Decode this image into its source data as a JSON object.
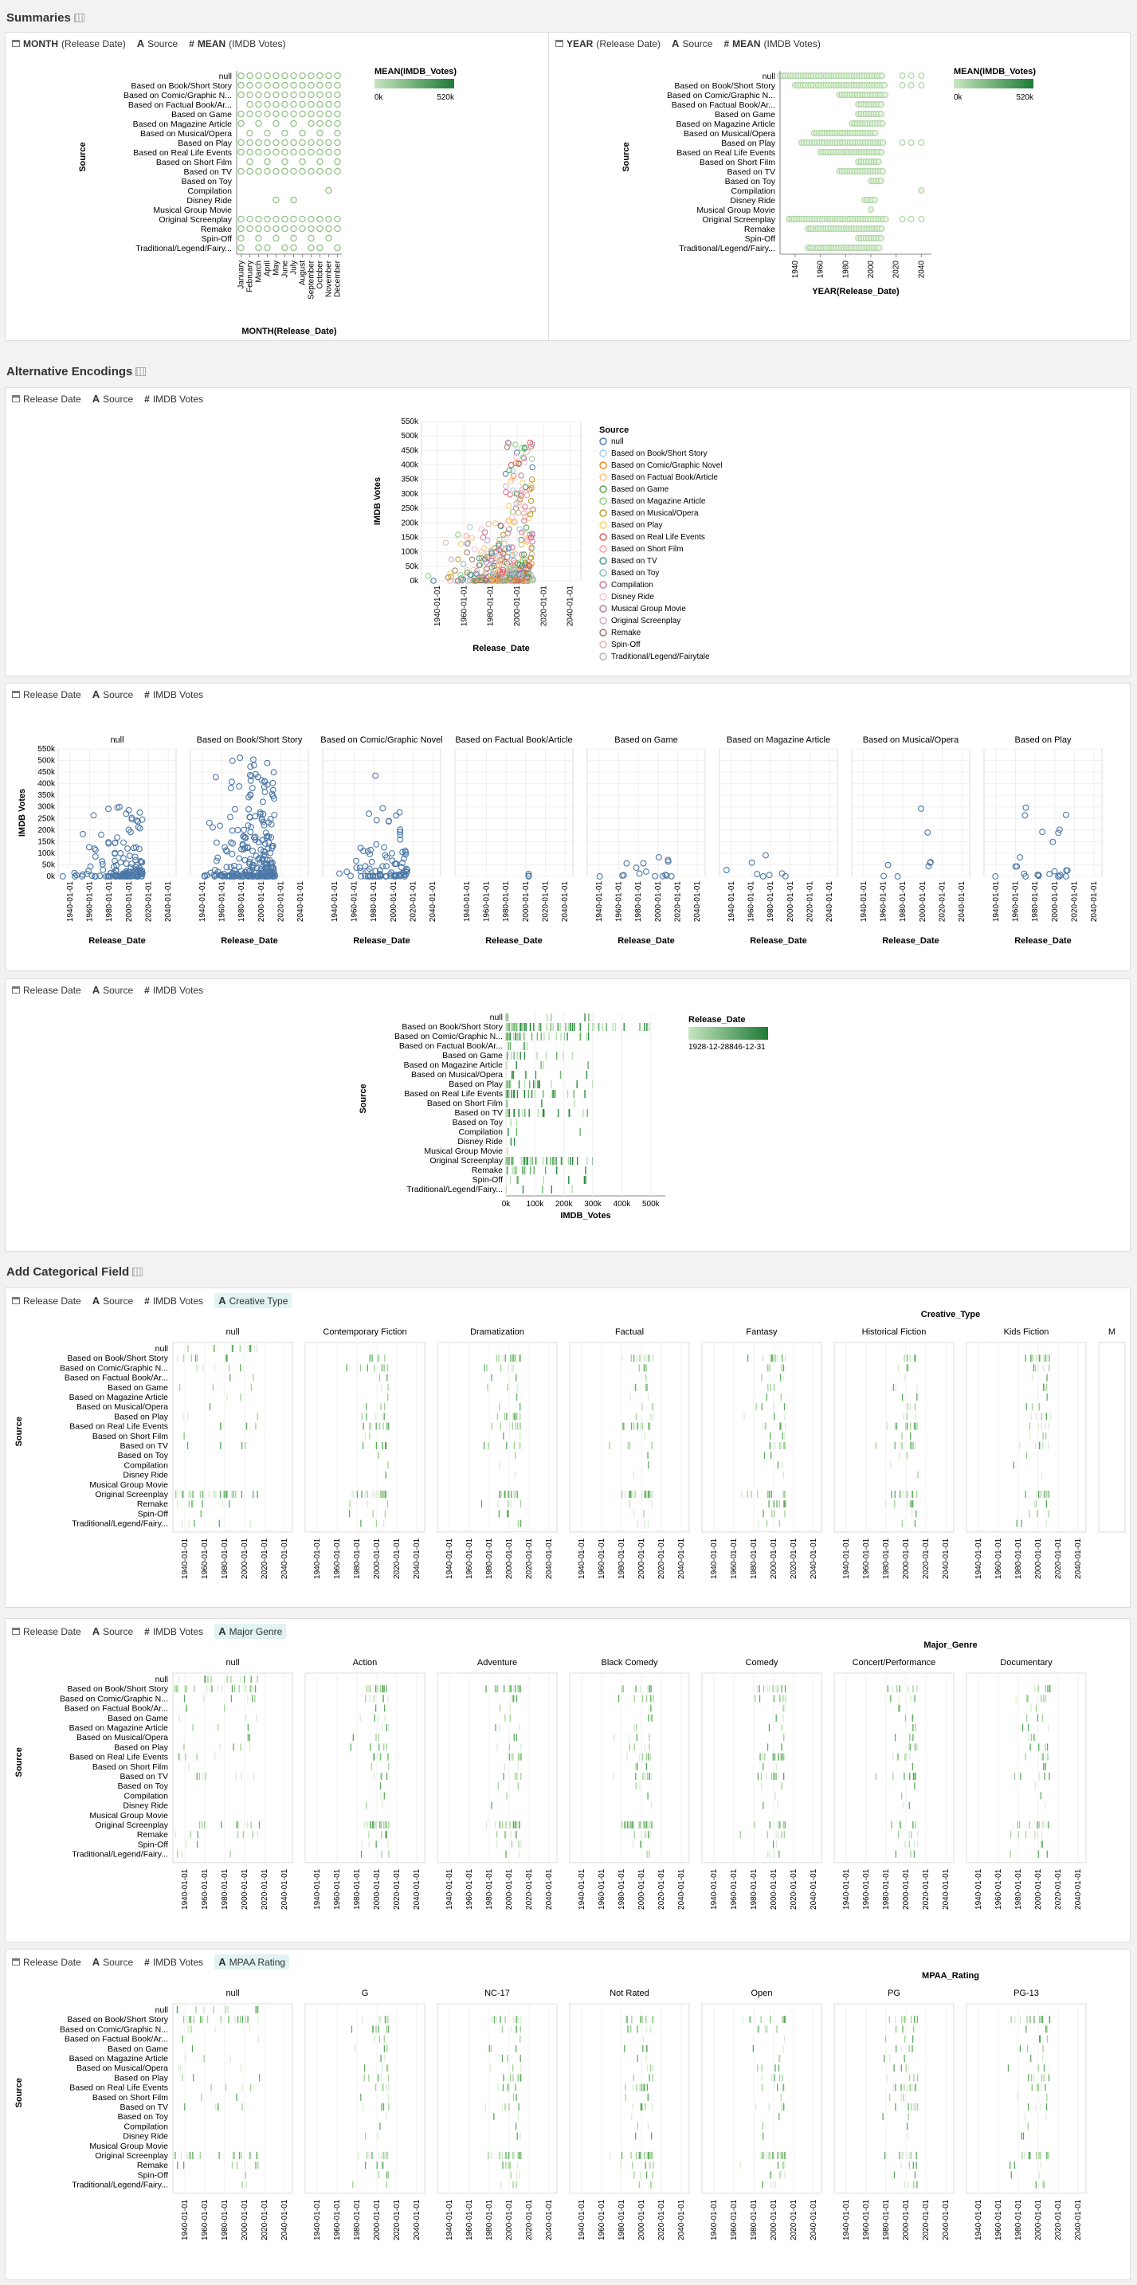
{
  "sections": {
    "summaries": "Summaries",
    "alternative": "Alternative Encodings",
    "categorical": "Add Categorical Field"
  },
  "summary_left": {
    "fields": [
      {
        "icon": "calendar-icon",
        "strong": "MONTH",
        "text": "(Release Date)"
      },
      {
        "icon": "text-icon",
        "strong": "",
        "text": "Source"
      },
      {
        "icon": "hash-icon",
        "strong": "MEAN",
        "text": "(IMDB Votes)"
      }
    ],
    "legend_title": "MEAN(IMDB_Votes)",
    "legend_min": "0k",
    "legend_max": "520k",
    "ytitle": "Source",
    "xtitle": "MONTH(Release_Date)"
  },
  "summary_right": {
    "fields": [
      {
        "icon": "calendar-icon",
        "strong": "YEAR",
        "text": "(Release Date)"
      },
      {
        "icon": "text-icon",
        "strong": "",
        "text": "Source"
      },
      {
        "icon": "hash-icon",
        "strong": "MEAN",
        "text": "(IMDB Votes)"
      }
    ],
    "legend_title": "MEAN(IMDB_Votes)",
    "legend_min": "0k",
    "legend_max": "520k",
    "ytitle": "Source",
    "xtitle": "YEAR(Release_Date)",
    "xticks": [
      "1940",
      "1960",
      "1980",
      "2000",
      "2020",
      "2040"
    ]
  },
  "basic_fields": [
    {
      "icon": "calendar-icon",
      "text": "Release Date"
    },
    {
      "icon": "text-icon",
      "text": "Source"
    },
    {
      "icon": "hash-icon",
      "text": "IMDB Votes"
    }
  ],
  "scatter": {
    "xtitle": "Release_Date",
    "ytitle": "IMDB Votes",
    "legend_title": "Source",
    "yticks": [
      "550k",
      "500k",
      "450k",
      "400k",
      "350k",
      "300k",
      "250k",
      "200k",
      "150k",
      "100k",
      "50k",
      "0k"
    ],
    "xticks": [
      "1940-01-01",
      "1960-01-01",
      "1980-01-01",
      "2000-01-01",
      "2020-01-01",
      "2040-01-01"
    ]
  },
  "facet": {
    "titles": [
      "null",
      "Based on Book/Short Story",
      "Based on Comic/Graphic Novel",
      "Based on Factual Book/Article",
      "Based on Game",
      "Based on Magazine Article",
      "Based on Musical/Opera",
      "Based on Play"
    ],
    "ytitle": "IMDB Votes",
    "xtitle": "Release_Date",
    "yticks": [
      "550k",
      "500k",
      "450k",
      "400k",
      "350k",
      "300k",
      "250k",
      "200k",
      "150k",
      "100k",
      "50k",
      "0k"
    ],
    "xticks": [
      "1940-01-01",
      "1960-01-01",
      "1980-01-01",
      "2000-01-01",
      "2020-01-01",
      "2040-01-01"
    ]
  },
  "ticks_chart": {
    "ytitle": "Source",
    "xtitle": "IMDB_Votes",
    "xticks": [
      "0k",
      "100k",
      "200k",
      "300k",
      "400k",
      "500k"
    ],
    "legend_title": "Release_Date",
    "legend_range": "1928-12-28846-12-31"
  },
  "sources": [
    "null",
    "Based on Book/Short Story",
    "Based on Comic/Graphic N...",
    "Based on Factual Book/Ar...",
    "Based on Game",
    "Based on Magazine Article",
    "Based on Musical/Opera",
    "Based on Play",
    "Based on Real Life Events",
    "Based on Short Film",
    "Based on TV",
    "Based on Toy",
    "Compilation",
    "Disney Ride",
    "Musical Group Movie",
    "Original Screenplay",
    "Remake",
    "Spin-Off",
    "Traditional/Legend/Fairy..."
  ],
  "legend_sources": [
    "null",
    "Based on Book/Short Story",
    "Based on Comic/Graphic Novel",
    "Based on Factual Book/Article",
    "Based on Game",
    "Based on Magazine Article",
    "Based on Musical/Opera",
    "Based on Play",
    "Based on Real Life Events",
    "Based on Short Film",
    "Based on TV",
    "Based on Toy",
    "Compilation",
    "Disney Ride",
    "Musical Group Movie",
    "Original Screenplay",
    "Remake",
    "Spin-Off",
    "Traditional/Legend/Fairytale"
  ],
  "legend_colors": [
    "#4c78a8",
    "#9ecae9",
    "#f58518",
    "#ffbf79",
    "#54a24b",
    "#88d27a",
    "#b79a20",
    "#f2cf5b",
    "#e45756",
    "#ff9d98",
    "#439894",
    "#83bcb6",
    "#d67195",
    "#fcbfd2",
    "#b279a2",
    "#d6a5c9",
    "#9e765f",
    "#d8b5a5",
    "#bab0ac"
  ],
  "months": [
    "January",
    "February",
    "March",
    "April",
    "May",
    "June",
    "July",
    "August",
    "September",
    "October",
    "November",
    "December"
  ],
  "cat_panels": [
    {
      "field": "Creative Type",
      "header": "Creative_Type",
      "columns": [
        "null",
        "Contemporary Fiction",
        "Dramatization",
        "Factual",
        "Fantasy",
        "Historical Fiction",
        "Kids Fiction",
        "M"
      ],
      "ytitle": "Source",
      "xticks": [
        "1940-01-01",
        "1960-01-01",
        "1980-01-01",
        "2000-01-01",
        "2020-01-01",
        "2040-01-01"
      ]
    },
    {
      "field": "Major Genre",
      "header": "Major_Genre",
      "columns": [
        "null",
        "Action",
        "Adventure",
        "Black Comedy",
        "Comedy",
        "Concert/Performance",
        "Documentary"
      ],
      "ytitle": "Source",
      "xticks": [
        "1940-01-01",
        "1960-01-01",
        "1980-01-01",
        "2000-01-01",
        "2020-01-01",
        "2040-01-01"
      ]
    },
    {
      "field": "MPAA Rating",
      "header": "MPAA_Rating",
      "columns": [
        "null",
        "G",
        "NC-17",
        "Not Rated",
        "Open",
        "PG",
        "PG-13"
      ],
      "ytitle": "Source",
      "xticks": [
        "1940-01-01",
        "1960-01-01",
        "1980-01-01",
        "2000-01-01",
        "2020-01-01",
        "2040-01-01"
      ]
    }
  ],
  "colors": {
    "green_light": "#c7e6c0",
    "green_dark": "#1e7a36",
    "blue": "#4c78a8",
    "panel_bg": "#ffffff"
  },
  "chart_data": [
    {
      "type": "scatter",
      "title": "",
      "xlabel": "MONTH(Release_Date)",
      "ylabel": "Source",
      "categories_x": [
        "January",
        "February",
        "March",
        "April",
        "May",
        "June",
        "July",
        "August",
        "September",
        "October",
        "November",
        "December"
      ],
      "categories_y": [
        "null",
        "Based on Book/Short Story",
        "Based on Comic/Graphic N...",
        "Based on Factual Book/Ar...",
        "Based on Game",
        "Based on Magazine Article",
        "Based on Musical/Opera",
        "Based on Play",
        "Based on Real Life Events",
        "Based on Short Film",
        "Based on TV",
        "Based on Toy",
        "Compilation",
        "Disney Ride",
        "Musical Group Movie",
        "Original Screenplay",
        "Remake",
        "Spin-Off",
        "Traditional/Legend/Fairy..."
      ],
      "legend": "MEAN(IMDB_Votes)",
      "color_range": [
        0,
        520000
      ],
      "present": [
        [
          0,
          1,
          2,
          3,
          4,
          5,
          6,
          7,
          8,
          9,
          10,
          11
        ],
        [
          0,
          1,
          2,
          3,
          4,
          5,
          6,
          7,
          8,
          9,
          10,
          11
        ],
        [
          0,
          1,
          2,
          3,
          4,
          5,
          6,
          7,
          8,
          9,
          10,
          11
        ],
        [
          1,
          2,
          3,
          4,
          5,
          6,
          7,
          8,
          9,
          10,
          11
        ],
        [
          0,
          1,
          2,
          3,
          4,
          5,
          6,
          7,
          8,
          9,
          10,
          11
        ],
        [
          0,
          2,
          4,
          6,
          8,
          9,
          10,
          11
        ],
        [
          1,
          3,
          5,
          7,
          9,
          11
        ],
        [
          0,
          1,
          2,
          3,
          4,
          5,
          6,
          7,
          8,
          9,
          10,
          11
        ],
        [
          0,
          1,
          2,
          3,
          4,
          5,
          6,
          7,
          8,
          9,
          10,
          11
        ],
        [
          1,
          3,
          5,
          7,
          9,
          11
        ],
        [
          0,
          1,
          2,
          3,
          4,
          5,
          6,
          7,
          8,
          9,
          10,
          11
        ],
        [],
        [
          10
        ],
        [
          4,
          6
        ],
        [],
        [
          0,
          1,
          2,
          3,
          4,
          5,
          6,
          7,
          8,
          9,
          10,
          11
        ],
        [
          0,
          1,
          2,
          3,
          4,
          5,
          6,
          7,
          8,
          9,
          10,
          11
        ],
        [
          0,
          2,
          4,
          6,
          8,
          10
        ],
        [
          0,
          2,
          3,
          5,
          6,
          8,
          9,
          11
        ]
      ]
    },
    {
      "type": "scatter",
      "title": "",
      "xlabel": "YEAR(Release_Date)",
      "ylabel": "Source",
      "legend": "MEAN(IMDB_Votes)",
      "color_range": [
        0,
        520000
      ],
      "xlim": [
        1928,
        2048
      ],
      "year_ranges": [
        [
          1928,
          2010
        ],
        [
          1940,
          2012
        ],
        [
          1975,
          2012
        ],
        [
          1990,
          2010
        ],
        [
          1990,
          2010
        ],
        [
          1985,
          2010
        ],
        [
          1955,
          2005
        ],
        [
          1945,
          2010
        ],
        [
          1960,
          2010
        ],
        [
          1990,
          2008
        ],
        [
          1975,
          2010
        ],
        [
          2000,
          2009
        ],
        [
          2040,
          2040
        ],
        [
          1995,
          2005
        ],
        [
          2000,
          2000
        ],
        [
          1935,
          2012
        ],
        [
          1950,
          2010
        ],
        [
          1990,
          2010
        ],
        [
          1950,
          2008
        ]
      ]
    },
    {
      "type": "scatter",
      "title": "",
      "xlabel": "Release_Date",
      "ylabel": "IMDB Votes",
      "xlim": [
        1928,
        2048
      ],
      "ylim": [
        0,
        550000
      ]
    },
    {
      "type": "scatter",
      "title": "",
      "xlabel": "Release_Date",
      "ylabel": "IMDB Votes",
      "facets": [
        "null",
        "Based on Book/Short Story",
        "Based on Comic/Graphic Novel",
        "Based on Factual Book/Article",
        "Based on Game",
        "Based on Magazine Article",
        "Based on Musical/Opera",
        "Based on Play"
      ],
      "xlim": [
        1928,
        2048
      ],
      "ylim": [
        0,
        550000
      ]
    },
    {
      "type": "bar",
      "title": "",
      "xlabel": "IMDB_Votes",
      "ylabel": "Source",
      "xlim": [
        0,
        550000
      ],
      "legend": "Release_Date"
    }
  ]
}
